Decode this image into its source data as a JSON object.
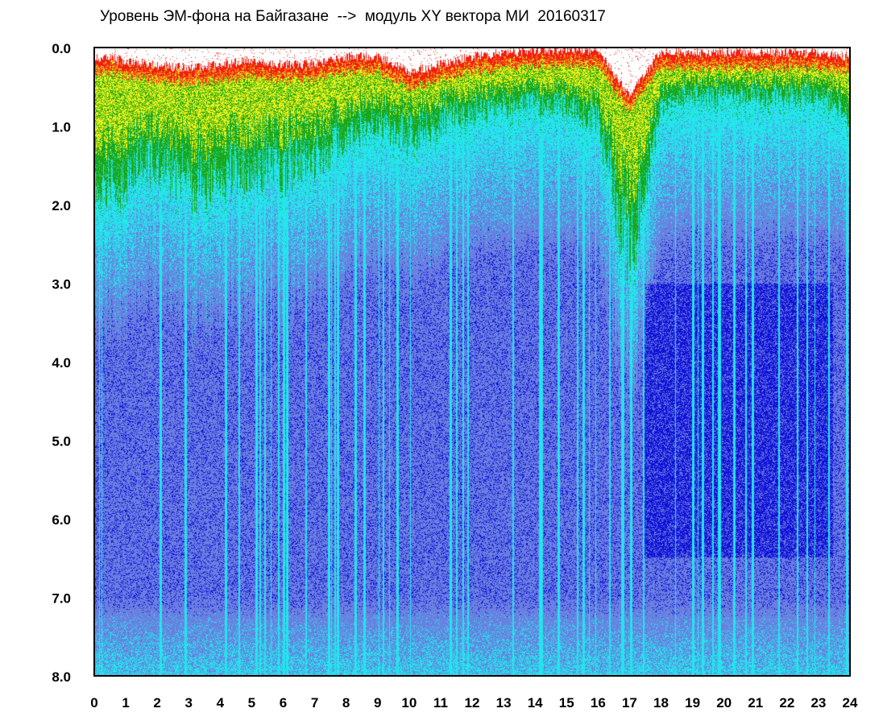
{
  "chart_data": {
    "type": "heatmap",
    "title": "Уровень ЭМ-фона на Байгазане  -->  модуль XY вектора МИ  20160317",
    "xlabel": "",
    "ylabel": "",
    "xlim": [
      0,
      24
    ],
    "ylim": [
      8.0,
      0.0
    ],
    "y_axis_inverted": true,
    "grid": false,
    "x_tick_labels": [
      "0",
      "1",
      "2",
      "3",
      "4",
      "5",
      "6",
      "7",
      "8",
      "9",
      "10",
      "11",
      "12",
      "13",
      "14",
      "15",
      "16",
      "17",
      "18",
      "19",
      "20",
      "21",
      "22",
      "23",
      "24"
    ],
    "y_tick_labels": [
      "0.0",
      "1.0",
      "2.0",
      "3.0",
      "4.0",
      "5.0",
      "6.0",
      "7.0",
      "8.0"
    ],
    "colormap": [
      "#1010d8",
      "#6a7fe0",
      "#24e4ec",
      "#1aa81a",
      "#f0f018",
      "#f02010"
    ],
    "envelope_depth": {
      "x": [
        0,
        1,
        2,
        3,
        4,
        5,
        6,
        7,
        8,
        9,
        10,
        11,
        12,
        13,
        14,
        15,
        16,
        17,
        18,
        19,
        20,
        21,
        22,
        23,
        24
      ],
      "red_fringe_level": [
        0.1,
        0.15,
        0.2,
        0.25,
        0.2,
        0.15,
        0.2,
        0.2,
        0.1,
        0.1,
        0.3,
        0.2,
        0.1,
        0.05,
        0.02,
        0.02,
        0.02,
        0.6,
        0.05,
        0.05,
        0.05,
        0.05,
        0.05,
        0.05,
        0.1
      ],
      "green_lower_edge": [
        1.8,
        1.6,
        1.4,
        1.7,
        1.6,
        1.5,
        1.5,
        1.4,
        1.1,
        0.9,
        1.1,
        0.9,
        0.8,
        0.7,
        0.7,
        0.7,
        0.9,
        2.7,
        0.7,
        0.6,
        0.6,
        0.6,
        0.6,
        0.6,
        0.8
      ]
    },
    "dense_low_region": {
      "x_range": [
        17.5,
        23.5
      ],
      "y_range": [
        3.0,
        6.5
      ]
    }
  }
}
